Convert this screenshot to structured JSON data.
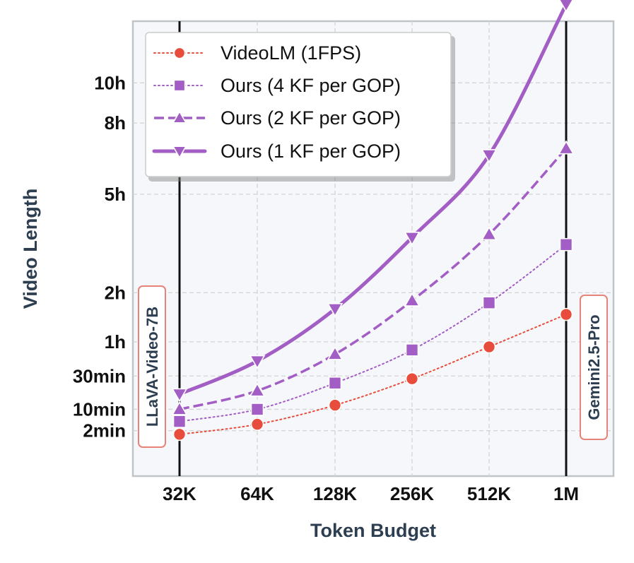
{
  "chart_data": {
    "type": "line",
    "xlabel": "Token Budget",
    "ylabel": "Video Length",
    "categories": [
      "32K",
      "64K",
      "128K",
      "256K",
      "512K",
      "1M"
    ],
    "y_ticks": [
      {
        "label": "2min",
        "minutes": 2
      },
      {
        "label": "10min",
        "minutes": 10
      },
      {
        "label": "30min",
        "minutes": 30
      },
      {
        "label": "1h",
        "minutes": 60
      },
      {
        "label": "2h",
        "minutes": 120
      },
      {
        "label": "5h",
        "minutes": 300
      },
      {
        "label": "8h",
        "minutes": 480
      },
      {
        "label": "10h",
        "minutes": 600
      }
    ],
    "y_unit": "minutes",
    "ylim": [
      -3,
      630
    ],
    "y_scale": "sqrt",
    "grid": true,
    "legend_position": "top-left",
    "series": [
      {
        "name": "VideoLM (1FPS)",
        "color": "#e74c3c",
        "marker": "circle",
        "line_style": "dotted",
        "values": [
          1,
          4,
          12,
          28,
          55,
          91
        ]
      },
      {
        "name": "Ours (4 KF per GOP)",
        "color": "#a25ec4",
        "marker": "square",
        "line_style": "dotted",
        "values": [
          5,
          10,
          25,
          52,
          106,
          198
        ]
      },
      {
        "name": "Ours (2 KF per GOP)",
        "color": "#a25ec4",
        "marker": "triangle-up",
        "line_style": "dashed",
        "values": [
          10,
          20,
          48,
          109,
          217,
          411
        ]
      },
      {
        "name": "Ours (1 KF per GOP)",
        "color": "#a25ec4",
        "marker": "triangle-down",
        "line_style": "solid",
        "values": [
          18,
          42,
          98,
          211,
          394,
          873
        ]
      }
    ],
    "reference_lines": [
      {
        "label": "LLaVA-Video-7B",
        "category": "32K",
        "color": "#111111"
      },
      {
        "label": "Gemini2.5-Pro",
        "category": "1M",
        "color": "#111111"
      }
    ],
    "label_box_color": "#e8837a"
  }
}
